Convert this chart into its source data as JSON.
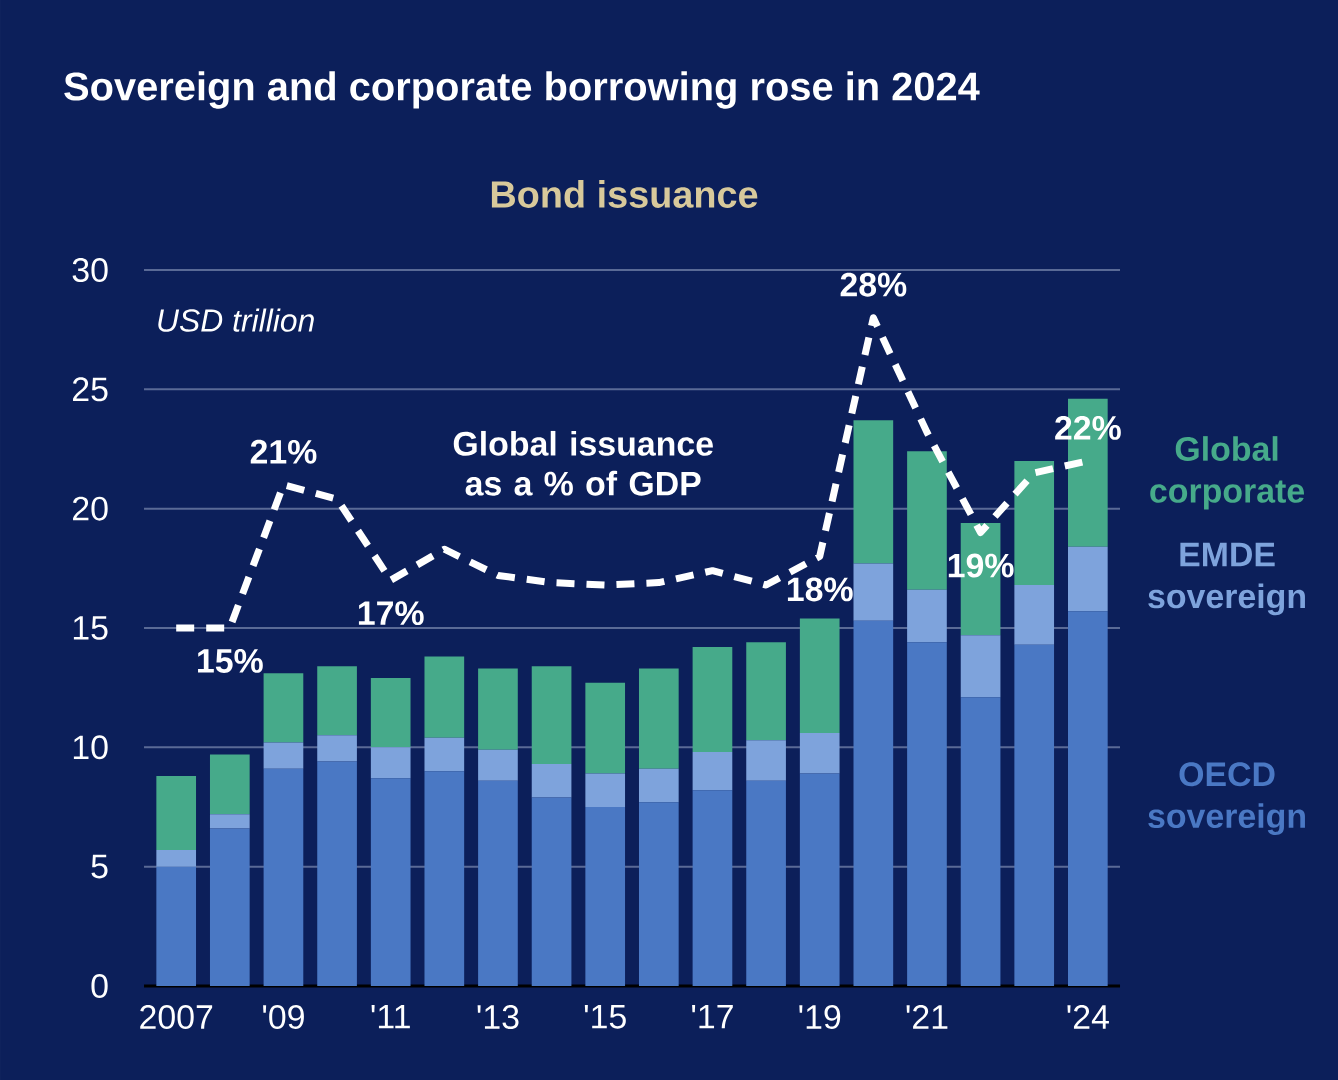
{
  "chart_data": {
    "type": "bar",
    "title": "Sovereign and corporate borrowing rose in 2024",
    "subtitle": "Bond issuance",
    "ylabel": "USD trillion",
    "categories": [
      "2007",
      null,
      "'09",
      null,
      "'11",
      null,
      "'13",
      null,
      "'15",
      null,
      "'17",
      null,
      "'19",
      null,
      "'21",
      null,
      null,
      "'24"
    ],
    "stacked": true,
    "ylim": [
      0,
      30
    ],
    "yticks": [
      0,
      5,
      10,
      15,
      20,
      25,
      30
    ],
    "grid": "y",
    "series": [
      {
        "name": "OECD sovereign",
        "color": "#4a78c4",
        "values": [
          5.0,
          6.6,
          9.1,
          9.4,
          8.7,
          9.0,
          8.6,
          7.9,
          7.5,
          7.7,
          8.2,
          8.6,
          8.9,
          15.3,
          14.4,
          12.1,
          14.3,
          15.7
        ]
      },
      {
        "name": "EMDE sovereign",
        "color": "#7ea3dc",
        "values": [
          0.7,
          0.6,
          1.1,
          1.1,
          1.3,
          1.4,
          1.3,
          1.4,
          1.4,
          1.4,
          1.6,
          1.7,
          1.7,
          2.4,
          2.2,
          2.6,
          2.5,
          2.7
        ]
      },
      {
        "name": "Global corporate",
        "color": "#46aa8a",
        "values": [
          3.1,
          2.5,
          2.9,
          2.9,
          2.9,
          3.4,
          3.4,
          4.1,
          3.8,
          4.2,
          4.4,
          4.1,
          4.8,
          6.0,
          5.8,
          4.7,
          5.2,
          6.2
        ]
      },
      {
        "name": "Global issuance as a % of GDP",
        "type": "line",
        "color": "#ffffff",
        "line_style": "dashed",
        "marker": "none",
        "values": [
          15,
          15,
          21,
          20.4,
          17,
          18.3,
          17.2,
          16.9,
          16.8,
          16.9,
          17.4,
          16.8,
          18,
          28,
          23.2,
          19,
          21.5,
          22
        ],
        "value_labels": [
          null,
          "15%",
          "21%",
          null,
          "17%",
          null,
          null,
          null,
          null,
          null,
          null,
          null,
          "18%",
          "28%",
          null,
          "19%",
          null,
          "22%"
        ]
      }
    ]
  }
}
